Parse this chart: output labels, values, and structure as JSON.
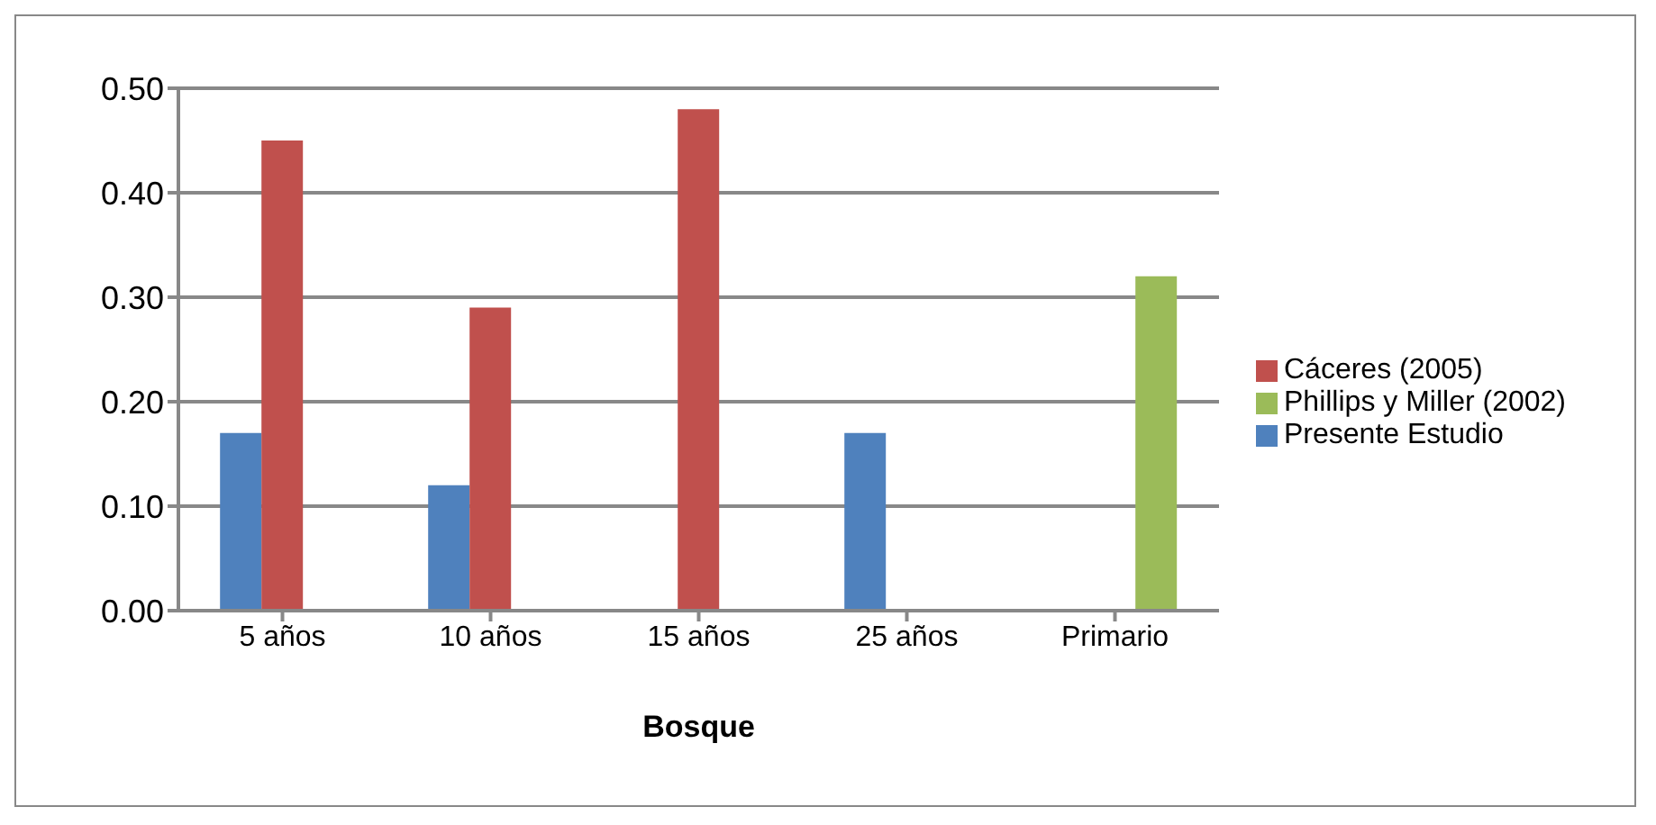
{
  "chart_data": {
    "type": "bar",
    "xlabel": "Bosque",
    "categories": [
      "5 años",
      "10 años",
      "15 años",
      "25 años",
      "Primario"
    ],
    "series": [
      {
        "name": "Presente Estudio",
        "color": "#4f81bd",
        "values": [
          0.17,
          0.12,
          null,
          0.17,
          null
        ]
      },
      {
        "name": "Cáceres (2005)",
        "color": "#c0504d",
        "values": [
          0.45,
          0.29,
          0.48,
          null,
          null
        ]
      },
      {
        "name": "Phillips y Miller (2002)",
        "color": "#9bbb59",
        "values": [
          null,
          null,
          null,
          null,
          0.32
        ]
      }
    ],
    "ylim": [
      0,
      0.5
    ],
    "yticks": [
      {
        "value": 0,
        "label": "0.00"
      },
      {
        "value": 0.1,
        "label": "0.10"
      },
      {
        "value": 0.2,
        "label": "0.20"
      },
      {
        "value": 0.3,
        "label": "0.30"
      },
      {
        "value": 0.4,
        "label": "0.40"
      },
      {
        "value": 0.5,
        "label": "0.50"
      }
    ],
    "grid": "y",
    "legend": "right"
  }
}
